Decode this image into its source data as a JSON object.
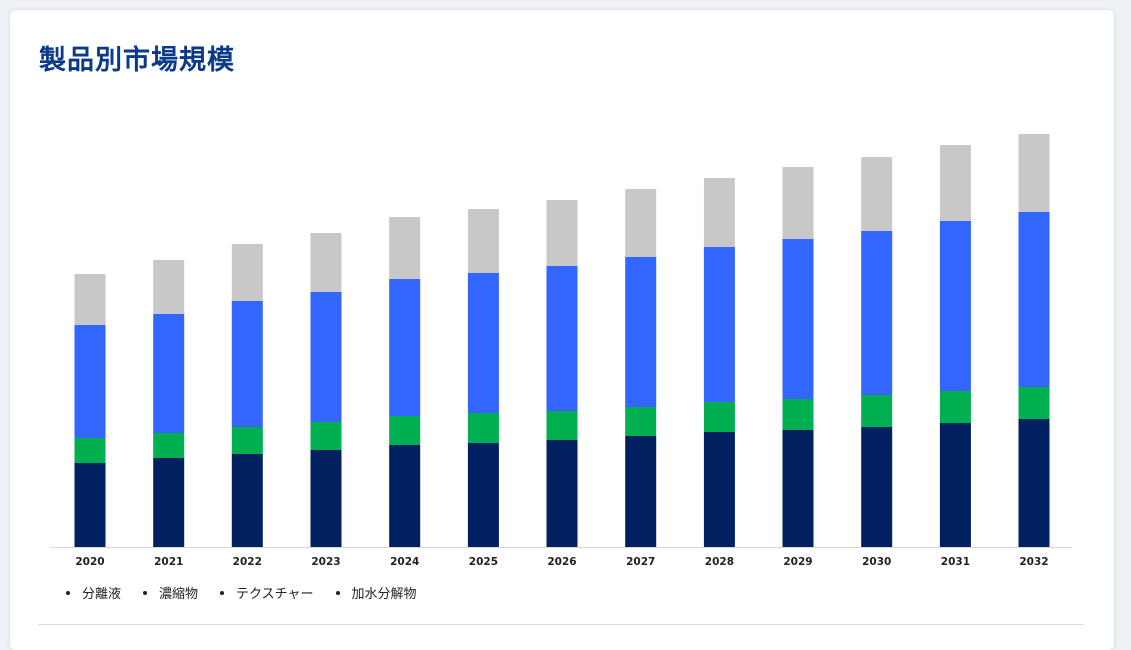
{
  "page": {
    "title": "製品別市場規模"
  },
  "chart_data": {
    "type": "bar",
    "stacked": true,
    "categories": [
      "2020",
      "2021",
      "2022",
      "2023",
      "2024",
      "2025",
      "2026",
      "2027",
      "2028",
      "2029",
      "2030",
      "2031",
      "2032"
    ],
    "series": [
      {
        "name": "分離液",
        "color": "#002060",
        "values": [
          84,
          89,
          93,
          97,
          102,
          104,
          107,
          111,
          115,
          117,
          120,
          124,
          128
        ]
      },
      {
        "name": "濃縮物",
        "color": "#00b050",
        "values": [
          25,
          25,
          27,
          28,
          29,
          30,
          29,
          29,
          30,
          31,
          32,
          32,
          32
        ]
      },
      {
        "name": "テクスチャー",
        "color": "#3366ff",
        "values": [
          113,
          119,
          126,
          130,
          137,
          140,
          145,
          150,
          155,
          160,
          164,
          170,
          175
        ]
      },
      {
        "name": "加水分解物",
        "color": "#c8c8c8",
        "values": [
          51,
          54,
          57,
          59,
          62,
          64,
          66,
          68,
          69,
          72,
          74,
          76,
          78
        ]
      }
    ],
    "ylim": [
      0,
      414
    ],
    "grid": false,
    "legend_position": "bottom-left",
    "legend_marker": "•"
  }
}
